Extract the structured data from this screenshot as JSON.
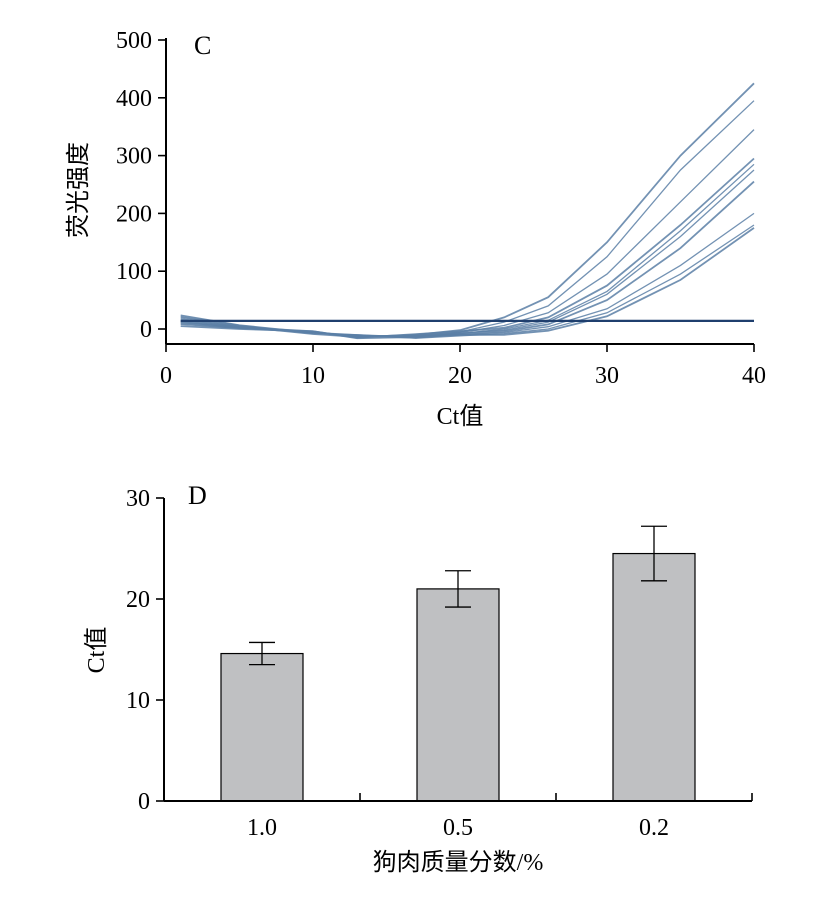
{
  "chart_data": [
    {
      "type": "line",
      "panel_label": "C",
      "title": "",
      "xlabel": "Ct值",
      "ylabel": "荧光强度",
      "xlim": [
        0,
        40
      ],
      "ylim": [
        -25,
        500
      ],
      "xticks": [
        0,
        10,
        20,
        30,
        40
      ],
      "yticks": [
        0,
        100,
        200,
        300,
        400,
        500
      ],
      "grid": false,
      "threshold": 14,
      "line_color": "#5a7fa6",
      "threshold_color": "#1f3f6e",
      "series": [
        {
          "values": [
            [
              1,
              10
            ],
            [
              5,
              2
            ],
            [
              10,
              -5
            ],
            [
              13,
              -14
            ],
            [
              17,
              -10
            ],
            [
              20,
              -2
            ],
            [
              23,
              20
            ],
            [
              26,
              55
            ],
            [
              30,
              150
            ],
            [
              35,
              300
            ],
            [
              40,
              425
            ]
          ]
        },
        {
          "values": [
            [
              1,
              16
            ],
            [
              5,
              4
            ],
            [
              10,
              -6
            ],
            [
              13,
              -12
            ],
            [
              17,
              -12
            ],
            [
              20,
              -5
            ],
            [
              23,
              12
            ],
            [
              26,
              40
            ],
            [
              30,
              125
            ],
            [
              35,
              275
            ],
            [
              40,
              395
            ]
          ]
        },
        {
          "values": [
            [
              1,
              20
            ],
            [
              5,
              5
            ],
            [
              10,
              -8
            ],
            [
              13,
              -10
            ],
            [
              17,
              -14
            ],
            [
              20,
              -6
            ],
            [
              23,
              6
            ],
            [
              26,
              28
            ],
            [
              30,
              95
            ],
            [
              35,
              220
            ],
            [
              40,
              345
            ]
          ]
        },
        {
          "values": [
            [
              1,
              12
            ],
            [
              5,
              3
            ],
            [
              10,
              -4
            ],
            [
              13,
              -15
            ],
            [
              17,
              -9
            ],
            [
              20,
              -4
            ],
            [
              23,
              2
            ],
            [
              26,
              20
            ],
            [
              30,
              75
            ],
            [
              35,
              180
            ],
            [
              40,
              295
            ]
          ]
        },
        {
          "values": [
            [
              1,
              22
            ],
            [
              5,
              6
            ],
            [
              10,
              -7
            ],
            [
              13,
              -11
            ],
            [
              17,
              -13
            ],
            [
              20,
              -8
            ],
            [
              23,
              0
            ],
            [
              26,
              15
            ],
            [
              30,
              65
            ],
            [
              35,
              170
            ],
            [
              40,
              285
            ]
          ]
        },
        {
          "values": [
            [
              1,
              8
            ],
            [
              5,
              1
            ],
            [
              10,
              -5
            ],
            [
              13,
              -13
            ],
            [
              17,
              -11
            ],
            [
              20,
              -7
            ],
            [
              23,
              -2
            ],
            [
              26,
              12
            ],
            [
              30,
              60
            ],
            [
              35,
              160
            ],
            [
              40,
              275
            ]
          ]
        },
        {
          "values": [
            [
              1,
              14
            ],
            [
              5,
              2
            ],
            [
              10,
              -6
            ],
            [
              13,
              -12
            ],
            [
              17,
              -15
            ],
            [
              20,
              -9
            ],
            [
              23,
              -4
            ],
            [
              26,
              8
            ],
            [
              30,
              50
            ],
            [
              35,
              140
            ],
            [
              40,
              255
            ]
          ]
        },
        {
          "values": [
            [
              1,
              18
            ],
            [
              5,
              4
            ],
            [
              10,
              -9
            ],
            [
              13,
              -14
            ],
            [
              17,
              -12
            ],
            [
              20,
              -10
            ],
            [
              23,
              -6
            ],
            [
              26,
              4
            ],
            [
              30,
              35
            ],
            [
              35,
              110
            ],
            [
              40,
              200
            ]
          ]
        },
        {
          "values": [
            [
              1,
              24
            ],
            [
              5,
              7
            ],
            [
              10,
              -6
            ],
            [
              13,
              -10
            ],
            [
              17,
              -16
            ],
            [
              20,
              -12
            ],
            [
              23,
              -8
            ],
            [
              26,
              0
            ],
            [
              30,
              28
            ],
            [
              35,
              95
            ],
            [
              40,
              180
            ]
          ]
        },
        {
          "values": [
            [
              1,
              5
            ],
            [
              5,
              0
            ],
            [
              10,
              -4
            ],
            [
              13,
              -16
            ],
            [
              17,
              -14
            ],
            [
              20,
              -10
            ],
            [
              23,
              -10
            ],
            [
              26,
              -3
            ],
            [
              30,
              22
            ],
            [
              35,
              85
            ],
            [
              40,
              175
            ]
          ]
        }
      ]
    },
    {
      "type": "bar",
      "panel_label": "D",
      "title": "",
      "xlabel": "狗肉质量分数/%",
      "ylabel": "Ct值",
      "categories": [
        "1.0",
        "0.5",
        "0.2"
      ],
      "values": [
        14.6,
        21.0,
        24.5
      ],
      "errors": [
        1.1,
        1.8,
        2.7
      ],
      "ylim": [
        0,
        30
      ],
      "yticks": [
        0,
        10,
        20,
        30
      ],
      "grid": false,
      "bar_color": "#bfc0c2"
    }
  ]
}
